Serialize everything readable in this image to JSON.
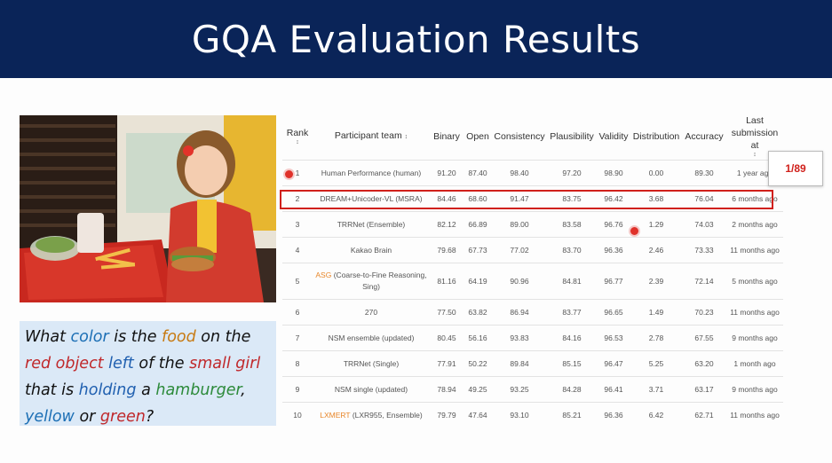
{
  "slide": {
    "title": "GQA Evaluation Results"
  },
  "question": {
    "parts": [
      {
        "text": "What ",
        "color": "#111111"
      },
      {
        "text": "color",
        "color": "#1c6fb5"
      },
      {
        "text": " is the ",
        "color": "#111111"
      },
      {
        "text": "food",
        "color": "#c77a12"
      },
      {
        "text": " on the ",
        "color": "#111111"
      },
      {
        "text": "red object",
        "color": "#c0282b"
      },
      {
        "text": " ",
        "color": "#111111"
      },
      {
        "text": "left",
        "color": "#2060b0"
      },
      {
        "text": " of the ",
        "color": "#111111"
      },
      {
        "text": "small girl",
        "color": "#c0282b"
      },
      {
        "text": " that is ",
        "color": "#111111"
      },
      {
        "text": "holding",
        "color": "#2060b0"
      },
      {
        "text": " a ",
        "color": "#111111"
      },
      {
        "text": "hamburger",
        "color": "#2c8a3a"
      },
      {
        "text": ", ",
        "color": "#111111"
      },
      {
        "text": "yellow",
        "color": "#1c6fb5"
      },
      {
        "text": " or ",
        "color": "#111111"
      },
      {
        "text": "green",
        "color": "#c0282b"
      },
      {
        "text": "?",
        "color": "#111111"
      }
    ]
  },
  "leaderboard": {
    "headers": {
      "rank": "Rank",
      "team": "Participant team",
      "binary": "Binary",
      "open": "Open",
      "consistency": "Consistency",
      "plausibility": "Plausibility",
      "validity": "Validity",
      "distribution": "Distribution",
      "accuracy": "Accuracy",
      "last": "Last submission at",
      "sort_glyph": "↕"
    },
    "rows": [
      {
        "rank": "1",
        "team_prefix": "",
        "team": "Human Performance (human)",
        "binary": "91.20",
        "open": "87.40",
        "consistency": "98.40",
        "plausibility": "97.20",
        "validity": "98.90",
        "distribution": "0.00",
        "accuracy": "89.30",
        "last": "1 year ago"
      },
      {
        "rank": "2",
        "team_prefix": "",
        "team": "DREAM+Unicoder-VL (MSRA)",
        "binary": "84.46",
        "open": "68.60",
        "consistency": "91.47",
        "plausibility": "83.75",
        "validity": "96.42",
        "distribution": "3.68",
        "accuracy": "76.04",
        "last": "6 months ago"
      },
      {
        "rank": "3",
        "team_prefix": "",
        "team": "TRRNet (Ensemble)",
        "binary": "82.12",
        "open": "66.89",
        "consistency": "89.00",
        "plausibility": "83.58",
        "validity": "96.76",
        "distribution": "1.29",
        "accuracy": "74.03",
        "last": "2 months ago"
      },
      {
        "rank": "4",
        "team_prefix": "",
        "team": "Kakao Brain",
        "binary": "79.68",
        "open": "67.73",
        "consistency": "77.02",
        "plausibility": "83.70",
        "validity": "96.36",
        "distribution": "2.46",
        "accuracy": "73.33",
        "last": "11 months ago"
      },
      {
        "rank": "5",
        "team_prefix": "ASG",
        "team": "(Coarse-to-Fine Reasoning, Sing)",
        "binary": "81.16",
        "open": "64.19",
        "consistency": "90.96",
        "plausibility": "84.81",
        "validity": "96.77",
        "distribution": "2.39",
        "accuracy": "72.14",
        "last": "5 months ago"
      },
      {
        "rank": "6",
        "team_prefix": "",
        "team": "270",
        "binary": "77.50",
        "open": "63.82",
        "consistency": "86.94",
        "plausibility": "83.77",
        "validity": "96.65",
        "distribution": "1.49",
        "accuracy": "70.23",
        "last": "11 months ago"
      },
      {
        "rank": "7",
        "team_prefix": "",
        "team": "NSM ensemble (updated)",
        "binary": "80.45",
        "open": "56.16",
        "consistency": "93.83",
        "plausibility": "84.16",
        "validity": "96.53",
        "distribution": "2.78",
        "accuracy": "67.55",
        "last": "9 months ago"
      },
      {
        "rank": "8",
        "team_prefix": "",
        "team": "TRRNet (Single)",
        "binary": "77.91",
        "open": "50.22",
        "consistency": "89.84",
        "plausibility": "85.15",
        "validity": "96.47",
        "distribution": "5.25",
        "accuracy": "63.20",
        "last": "1 month ago"
      },
      {
        "rank": "9",
        "team_prefix": "",
        "team": "NSM single (updated)",
        "binary": "78.94",
        "open": "49.25",
        "consistency": "93.25",
        "plausibility": "84.28",
        "validity": "96.41",
        "distribution": "3.71",
        "accuracy": "63.17",
        "last": "9 months ago"
      },
      {
        "rank": "10",
        "team_prefix": "LXMERT",
        "team": "(LXR955, Ensemble)",
        "binary": "79.79",
        "open": "47.64",
        "consistency": "93.10",
        "plausibility": "85.21",
        "validity": "96.36",
        "distribution": "6.42",
        "accuracy": "62.71",
        "last": "11 months ago"
      }
    ]
  },
  "annotation": {
    "callout": "1/89",
    "highlight_color": "#d0201b"
  }
}
